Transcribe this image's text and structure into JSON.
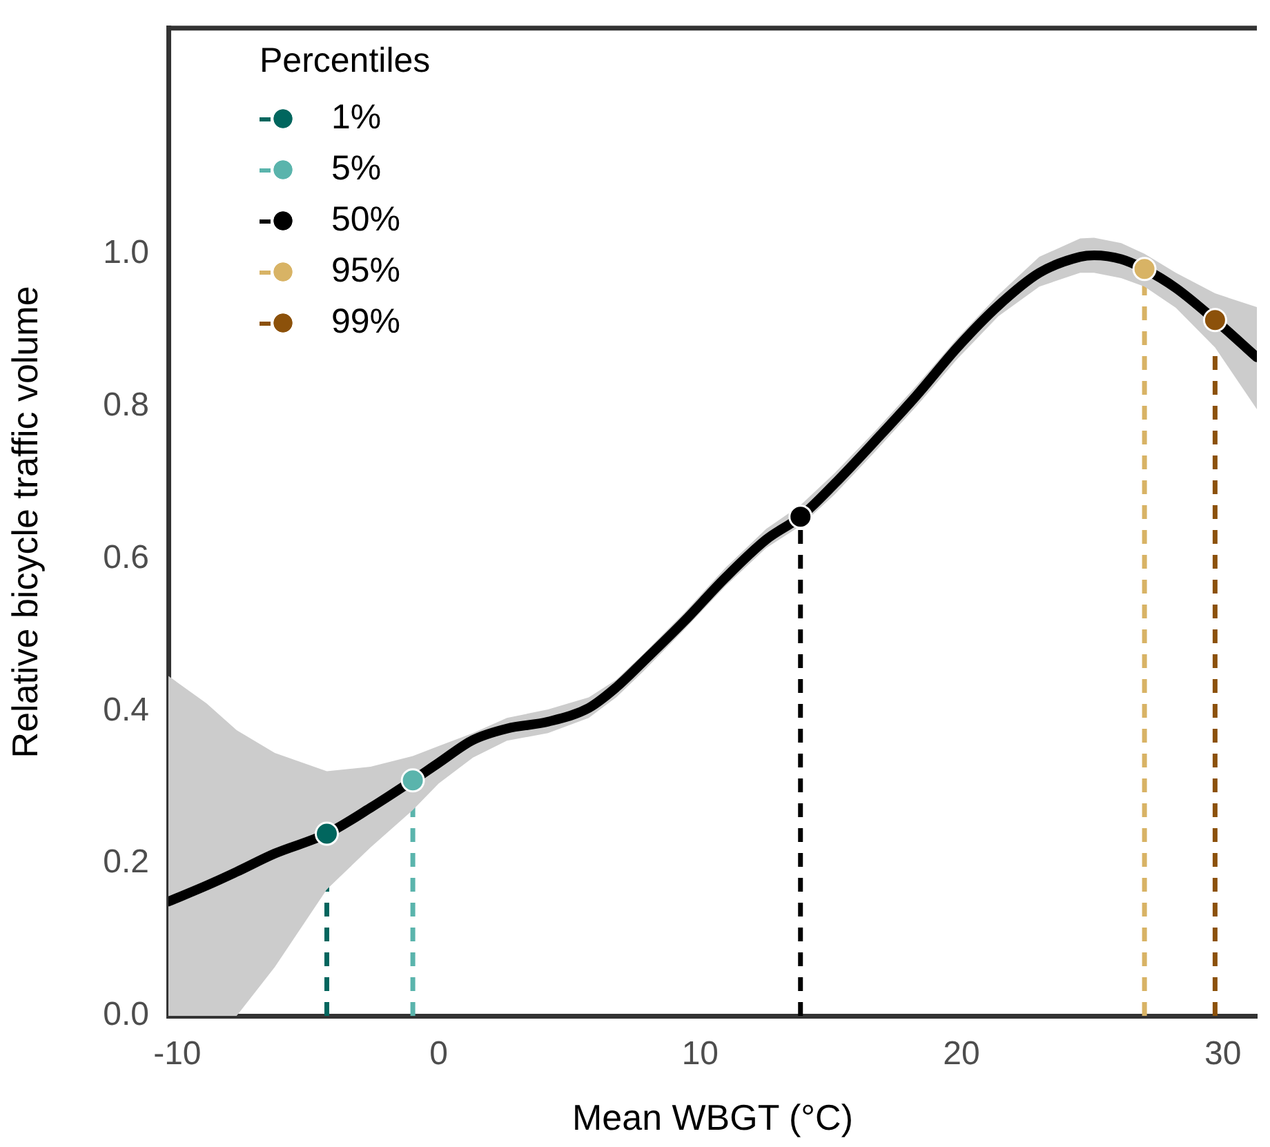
{
  "chart_data": {
    "type": "line",
    "xlabel": "Mean WBGT (°C)",
    "ylabel": "Relative bicycle traffic volume",
    "legend_title": "Percentiles",
    "legend": "top left",
    "grid": false,
    "xlim": [
      -10.34,
      31.3
    ],
    "xticks": [
      -10,
      0,
      10,
      20,
      30
    ],
    "ylim": [
      0,
      1.296
    ],
    "yticks": [
      {
        "value": 0,
        "label": "0.0"
      },
      {
        "value": 0.2,
        "label": "0.2"
      },
      {
        "value": 0.4,
        "label": "0.4"
      },
      {
        "value": 0.6,
        "label": "0.6"
      },
      {
        "value": 0.8,
        "label": "0.8"
      },
      {
        "value": 1,
        "label": "1.0"
      }
    ],
    "series": [
      {
        "color": "#000000",
        "marker": "none",
        "line_style": "solid",
        "x": [
          -10.34,
          -8.88,
          -7.73,
          -6.27,
          -4.28,
          -2.61,
          -0.99,
          0,
          1.31,
          2.61,
          4.18,
          5.74,
          6.79,
          7.83,
          9.4,
          10.97,
          12.53,
          13.84,
          15.14,
          16.71,
          18.28,
          19.84,
          21.41,
          22.98,
          24.54,
          25.07,
          26.11,
          27.0,
          28.2,
          29.7,
          31.3
        ],
        "values": [
          0.15,
          0.171,
          0.189,
          0.213,
          0.239,
          0.273,
          0.309,
          0.332,
          0.362,
          0.377,
          0.386,
          0.404,
          0.431,
          0.465,
          0.518,
          0.575,
          0.625,
          0.655,
          0.698,
          0.755,
          0.814,
          0.877,
          0.932,
          0.975,
          0.996,
          0.998,
          0.993,
          0.98,
          0.955,
          0.913,
          0.864
        ],
        "lower": [
          0,
          0,
          0,
          0.064,
          0.166,
          0.221,
          0.27,
          0.305,
          0.339,
          0.361,
          0.371,
          0.391,
          0.418,
          0.452,
          0.507,
          0.564,
          0.614,
          0.643,
          0.684,
          0.741,
          0.8,
          0.862,
          0.918,
          0.957,
          0.975,
          0.975,
          0.968,
          0.957,
          0.929,
          0.877,
          0.796
        ],
        "upper": [
          0.446,
          0.41,
          0.375,
          0.345,
          0.321,
          0.327,
          0.341,
          0.354,
          0.371,
          0.391,
          0.402,
          0.418,
          0.441,
          0.475,
          0.529,
          0.588,
          0.639,
          0.67,
          0.712,
          0.768,
          0.827,
          0.889,
          0.946,
          0.996,
          1.02,
          1.021,
          1.014,
          1.0,
          0.975,
          0.948,
          0.93
        ]
      },
      {
        "type": "scatter",
        "name": "1%",
        "color": "#01665e",
        "marker": "circle",
        "x": [
          -4.28
        ],
        "values": [
          0.239
        ]
      },
      {
        "type": "scatter",
        "name": "5%",
        "color": "#5ab4ac",
        "marker": "circle",
        "x": [
          -0.99
        ],
        "values": [
          0.309
        ]
      },
      {
        "type": "scatter",
        "name": "50%",
        "color": "#000000",
        "marker": "circle",
        "x": [
          13.84
        ],
        "values": [
          0.655
        ]
      },
      {
        "type": "scatter",
        "name": "95%",
        "color": "#d8b365",
        "marker": "circle",
        "x": [
          27.0
        ],
        "values": [
          0.98
        ]
      },
      {
        "type": "scatter",
        "name": "99%",
        "color": "#8c510a",
        "marker": "circle",
        "x": [
          29.7
        ],
        "values": [
          0.913
        ]
      }
    ],
    "ref_lines": [
      {
        "axis": "x",
        "value": -4.28,
        "color": "#01665e",
        "line_style": "dashed"
      },
      {
        "axis": "x",
        "value": -0.99,
        "color": "#5ab4ac",
        "line_style": "dashed"
      },
      {
        "axis": "x",
        "value": 13.84,
        "color": "#000000",
        "line_style": "dashed"
      },
      {
        "axis": "x",
        "value": 27.0,
        "color": "#d8b365",
        "line_style": "dashed"
      },
      {
        "axis": "x",
        "value": 29.7,
        "color": "#8c510a",
        "line_style": "dashed"
      }
    ]
  }
}
